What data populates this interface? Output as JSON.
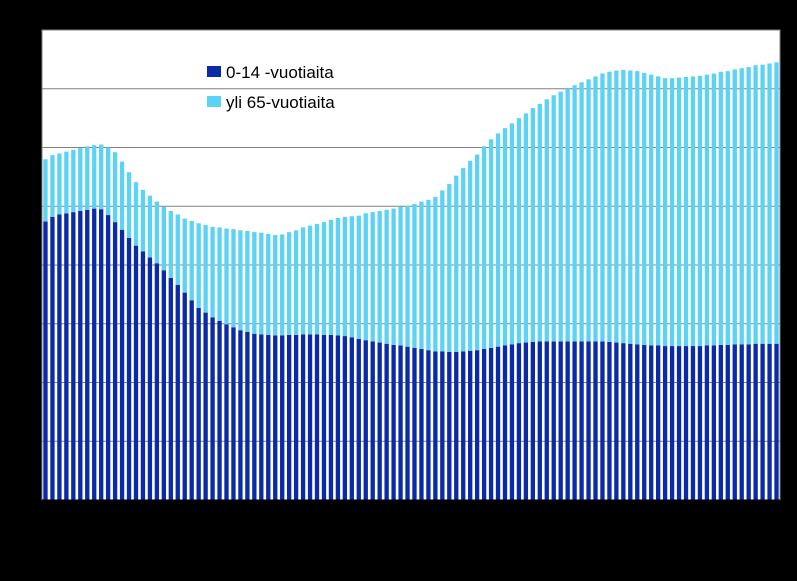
{
  "chart_data": {
    "type": "bar",
    "stacked": true,
    "grid": true,
    "legend_position": "top-left",
    "xlabel": "",
    "ylabel": "",
    "title": "",
    "ylim": [
      0,
      80
    ],
    "y_gridlines": [
      10,
      20,
      30,
      40,
      50,
      60,
      70
    ],
    "x_tick_count": 21,
    "x": [
      1,
      2,
      3,
      4,
      5,
      6,
      7,
      8,
      9,
      10,
      11,
      12,
      13,
      14,
      15,
      16,
      17,
      18,
      19,
      20,
      21,
      22,
      23,
      24,
      25,
      26,
      27,
      28,
      29,
      30,
      31,
      32,
      33,
      34,
      35,
      36,
      37,
      38,
      39,
      40,
      41,
      42,
      43,
      44,
      45,
      46,
      47,
      48,
      49,
      50,
      51,
      52,
      53,
      54,
      55,
      56,
      57,
      58,
      59,
      60,
      61,
      62,
      63,
      64,
      65,
      66,
      67,
      68,
      69,
      70,
      71,
      72,
      73,
      74,
      75,
      76,
      77,
      78,
      79,
      80,
      81,
      82,
      83,
      84,
      85,
      86,
      87,
      88,
      89,
      90,
      91,
      92,
      93,
      94,
      95,
      96,
      97,
      98,
      99,
      100,
      101,
      102,
      103,
      104,
      105,
      106
    ],
    "series": [
      {
        "name": "0-14 -vuotiaita",
        "color": "#0a2aa8",
        "values": [
          47.4,
          48.2,
          48.6,
          48.8,
          49.0,
          49.2,
          49.4,
          49.6,
          49.5,
          48.5,
          47.3,
          46.0,
          44.6,
          43.3,
          42.3,
          41.3,
          40.3,
          39.1,
          37.8,
          36.6,
          35.3,
          34.0,
          32.7,
          31.9,
          31.1,
          30.5,
          29.9,
          29.4,
          28.9,
          28.6,
          28.3,
          28.2,
          28.1,
          28.0,
          28.0,
          28.1,
          28.1,
          28.2,
          28.2,
          28.2,
          28.1,
          28.1,
          28.0,
          27.9,
          27.7,
          27.4,
          27.2,
          27.0,
          26.8,
          26.6,
          26.4,
          26.3,
          26.1,
          25.9,
          25.7,
          25.5,
          25.3,
          25.3,
          25.2,
          25.2,
          25.3,
          25.4,
          25.5,
          25.7,
          25.9,
          26.1,
          26.3,
          26.5,
          26.7,
          26.8,
          26.9,
          27.0,
          27.0,
          27.0,
          27.0,
          27.0,
          27.0,
          27.0,
          27.0,
          27.0,
          27.0,
          26.9,
          26.8,
          26.7,
          26.6,
          26.5,
          26.4,
          26.3,
          26.3,
          26.2,
          26.2,
          26.2,
          26.2,
          26.2,
          26.2,
          26.3,
          26.3,
          26.4,
          26.4,
          26.5,
          26.5,
          26.5,
          26.6,
          26.6,
          26.6,
          26.6
        ]
      },
      {
        "name": "yli 65-vuotiaita",
        "color": "#5cd3f5",
        "values": [
          10.6,
          10.5,
          10.4,
          10.5,
          10.6,
          10.7,
          10.8,
          10.8,
          11.0,
          11.5,
          11.9,
          11.6,
          11.2,
          10.8,
          10.5,
          10.5,
          10.5,
          10.8,
          11.4,
          12.0,
          12.6,
          13.5,
          14.4,
          14.9,
          15.4,
          15.9,
          16.3,
          16.7,
          17.0,
          17.2,
          17.3,
          17.3,
          17.2,
          17.1,
          17.2,
          17.5,
          17.8,
          18.2,
          18.5,
          18.8,
          19.2,
          19.6,
          20.0,
          20.3,
          20.6,
          21.0,
          21.6,
          22.0,
          22.4,
          22.8,
          23.2,
          23.6,
          24.0,
          24.5,
          25.1,
          25.6,
          26.3,
          27.4,
          28.6,
          30.0,
          31.2,
          32.3,
          33.3,
          34.5,
          35.5,
          36.3,
          37.0,
          37.6,
          38.3,
          39.0,
          39.8,
          40.4,
          41.2,
          41.9,
          42.5,
          43.0,
          43.6,
          44.1,
          44.6,
          45.1,
          45.6,
          46.0,
          46.3,
          46.5,
          46.5,
          46.5,
          46.3,
          46.1,
          45.8,
          45.6,
          45.6,
          45.7,
          45.8,
          45.9,
          46.0,
          46.1,
          46.3,
          46.5,
          46.6,
          46.8,
          47.0,
          47.2,
          47.4,
          47.5,
          47.7,
          47.9
        ]
      }
    ]
  }
}
